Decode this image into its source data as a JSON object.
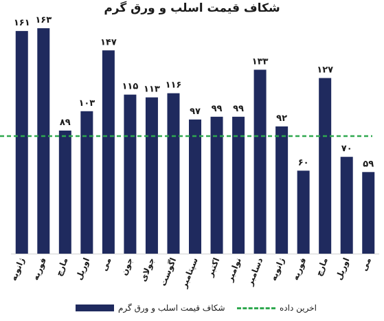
{
  "chart_data": {
    "type": "bar",
    "title": "شکاف قیمت اسلب و ورق گرم",
    "categories": [
      "ژانویه",
      "فوریه",
      "مارچ",
      "اوریل",
      "می",
      "جون",
      "جولای",
      "اگوست",
      "سپتامبر",
      "اکتبر",
      "نوامبر",
      "دسامبر",
      "ژانویه",
      "فوریه",
      "مارچ",
      "اوریل",
      "می"
    ],
    "series": [
      {
        "name": "شکاف قیمت اسلب و ورق گرم",
        "values": [
          161,
          163,
          89,
          103,
          147,
          115,
          113,
          116,
          97,
          99,
          99,
          133,
          92,
          60,
          127,
          70,
          59
        ],
        "labels": [
          "۱۶۱",
          "۱۶۳",
          "۸۹",
          "۱۰۳",
          "۱۴۷",
          "۱۱۵",
          "۱۱۳",
          "۱۱۶",
          "۹۷",
          "۹۹",
          "۹۹",
          "۱۳۳",
          "۹۲",
          "۶۰",
          "۱۲۷",
          "۷۰",
          "۵۹"
        ],
        "color": "#1f2a5e"
      }
    ],
    "reference_line": {
      "name": "اخرین داده",
      "value": 85,
      "color": "#2fa84f",
      "style": "dashed"
    },
    "ylim": [
      0,
      170
    ],
    "grid": false,
    "legend_position": "bottom"
  }
}
